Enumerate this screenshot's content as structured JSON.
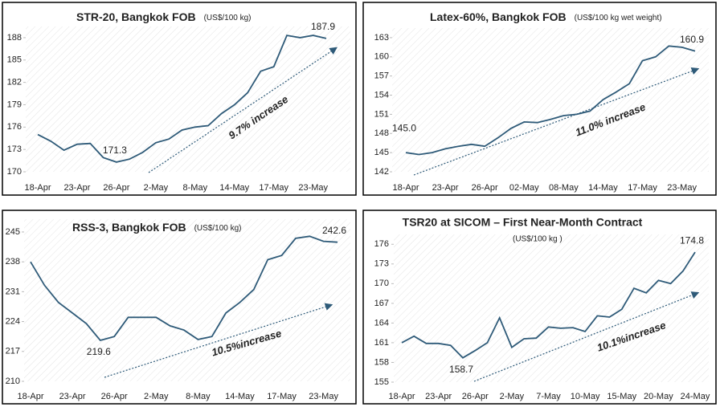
{
  "chart_data": [
    {
      "type": "line",
      "title": "STR-20, Bangkok FOB",
      "subtitle": "(US$/100 kg)",
      "color": "#2e5a78",
      "categories": [
        "18-Apr",
        null,
        null,
        "23-Apr",
        null,
        null,
        "26-Apr",
        null,
        null,
        "2-May",
        null,
        null,
        "8-May",
        null,
        null,
        "14-May",
        null,
        null,
        "17-May",
        null,
        null,
        "23-May",
        null
      ],
      "values": [
        175.0,
        174.1,
        172.9,
        173.7,
        173.8,
        171.9,
        171.3,
        171.7,
        172.6,
        173.9,
        174.4,
        175.6,
        176.0,
        176.2,
        177.8,
        179.0,
        180.6,
        183.5,
        184.1,
        188.3,
        188.0,
        188.3,
        187.9
      ],
      "value_labels": [
        null,
        null,
        null,
        null,
        null,
        null,
        "171.3",
        null,
        null,
        null,
        null,
        null,
        null,
        null,
        null,
        null,
        null,
        null,
        null,
        null,
        null,
        null,
        "187.9"
      ],
      "annotation": "9.7% increase",
      "ylim": [
        170,
        189.5
      ],
      "yticks": [
        170,
        173,
        176,
        179,
        182,
        185,
        188
      ]
    },
    {
      "type": "line",
      "title": "Latex-60%, Bangkok FOB",
      "subtitle": "(US$/100 kg wet weight)",
      "color": "#2e5a78",
      "categories": [
        "18-Apr",
        null,
        null,
        "23-Apr",
        null,
        null,
        "26-Apr",
        null,
        null,
        "02-May",
        null,
        null,
        "08-May",
        null,
        null,
        "14-May",
        null,
        null,
        "17-May",
        null,
        null,
        "23-May",
        null
      ],
      "values": [
        145.0,
        144.7,
        145.0,
        145.6,
        146.0,
        146.3,
        146.0,
        147.3,
        148.8,
        149.8,
        149.7,
        150.2,
        150.8,
        151.0,
        151.5,
        153.3,
        154.5,
        155.8,
        159.4,
        160.0,
        161.7,
        161.5,
        160.9
      ],
      "value_labels": [
        "145.0",
        null,
        null,
        null,
        null,
        null,
        null,
        null,
        null,
        null,
        null,
        null,
        null,
        null,
        null,
        null,
        null,
        null,
        null,
        null,
        null,
        null,
        "160.9"
      ],
      "annotation": "11.0% increase",
      "ylim": [
        142,
        164.5
      ],
      "yticks": [
        142,
        145,
        148,
        151,
        154,
        157,
        160,
        163
      ]
    },
    {
      "type": "line",
      "title": "RSS-3, Bangkok FOB",
      "subtitle": "(US$/100 kg)",
      "color": "#2e5a78",
      "categories": [
        "18-Apr",
        null,
        null,
        "23-Apr",
        null,
        null,
        "26-Apr",
        null,
        null,
        "2-May",
        null,
        null,
        "8-May",
        null,
        null,
        "14-May",
        null,
        null,
        "17-May",
        null,
        null,
        "23-May",
        null
      ],
      "values": [
        238.0,
        232.5,
        228.5,
        226.0,
        223.5,
        219.6,
        220.5,
        225.0,
        225.0,
        225.0,
        223.0,
        222.0,
        219.8,
        220.5,
        226.0,
        228.5,
        231.5,
        238.5,
        239.5,
        243.5,
        244.0,
        242.8,
        242.6
      ],
      "value_labels": [
        null,
        null,
        null,
        null,
        null,
        "219.6",
        null,
        null,
        null,
        null,
        null,
        null,
        null,
        null,
        null,
        null,
        null,
        null,
        null,
        null,
        null,
        null,
        "242.6"
      ],
      "annotation": "10.5%increase",
      "ylim": [
        210,
        248
      ],
      "yticks": [
        210,
        217,
        224,
        231,
        238,
        245
      ]
    },
    {
      "type": "line",
      "title": "TSR20 at SICOM – First Near-Month Contract",
      "subtitle": "(US$/100 kg )",
      "color": "#2e5a78",
      "categories": [
        "18-Apr",
        null,
        null,
        "23-Apr",
        null,
        null,
        "26-Apr",
        null,
        null,
        "2-May",
        null,
        null,
        "7-May",
        null,
        null,
        "10-May",
        null,
        null,
        "15-May",
        null,
        null,
        "20-May",
        null,
        null,
        "24-May"
      ],
      "values": [
        161.0,
        162.0,
        160.9,
        160.9,
        160.6,
        158.7,
        159.8,
        161.0,
        164.8,
        160.3,
        161.6,
        161.7,
        163.4,
        163.2,
        163.3,
        162.7,
        165.1,
        164.9,
        166.1,
        169.3,
        168.6,
        170.5,
        170.0,
        171.9,
        174.8
      ],
      "value_labels": [
        null,
        null,
        null,
        null,
        null,
        "158.7",
        null,
        null,
        null,
        null,
        null,
        null,
        null,
        null,
        null,
        null,
        null,
        null,
        null,
        null,
        null,
        null,
        null,
        null,
        "174.8"
      ],
      "annotation": "10.1%increase",
      "ylim": [
        155,
        177.5
      ],
      "yticks": [
        155,
        158,
        161,
        164,
        167,
        170,
        173,
        176
      ]
    }
  ]
}
